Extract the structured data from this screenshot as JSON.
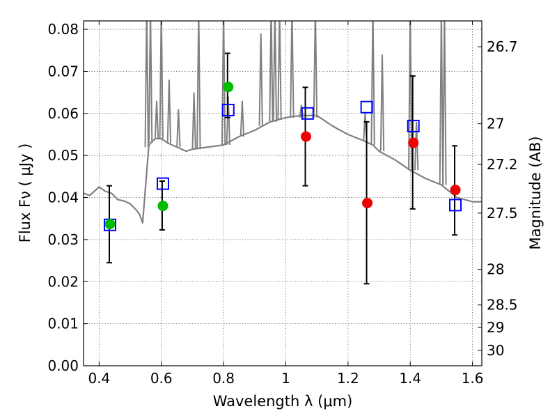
{
  "chart_data": {
    "type": "scatter",
    "title": "",
    "xlabel": "Wavelength  λ (μm)",
    "ylabel": "Flux  Fν  ( μJy )",
    "y2label": "Magnitude (AB)",
    "xlim": [
      0.35,
      1.63
    ],
    "ylim": [
      0.0,
      0.082
    ],
    "grid": true,
    "x_ticks": [
      0.4,
      0.6,
      0.8,
      1.0,
      1.2,
      1.4,
      1.6
    ],
    "x_tick_labels": [
      "0.4",
      "0.6",
      "0.8",
      "1",
      "1.2",
      "1.4",
      "1.6"
    ],
    "y_ticks": [
      0.0,
      0.01,
      0.02,
      0.03,
      0.04,
      0.05,
      0.06,
      0.07,
      0.08
    ],
    "y_tick_labels": [
      "0.00",
      "0.01",
      "0.02",
      "0.03",
      "0.04",
      "0.05",
      "0.06",
      "0.07",
      "0.08"
    ],
    "magnitude_ticks": [
      {
        "value": 26.7,
        "label": "26.7"
      },
      {
        "value": 27.0,
        "label": "27"
      },
      {
        "value": 27.2,
        "label": "27.2"
      },
      {
        "value": 27.5,
        "label": "27.5"
      },
      {
        "value": 28.0,
        "label": "28"
      },
      {
        "value": 28.5,
        "label": "28.5"
      },
      {
        "value": 29.0,
        "label": "29"
      },
      {
        "value": 30.0,
        "label": "30"
      }
    ],
    "colors": {
      "model_spectrum": "#808080",
      "model_photometry": "#0000ff",
      "observed_green": "#00bb00",
      "observed_red": "#ee0000",
      "error_bar": "#000000"
    },
    "series": [
      {
        "name": "model spectrum",
        "kind": "line",
        "x": [
          0.35,
          0.37,
          0.4,
          0.42,
          0.44,
          0.46,
          0.48,
          0.5,
          0.52,
          0.53,
          0.54,
          0.56,
          0.58,
          0.6,
          0.62,
          0.65,
          0.68,
          0.7,
          0.75,
          0.8,
          0.85,
          0.9,
          0.95,
          1.0,
          1.05,
          1.1,
          1.15,
          1.2,
          1.25,
          1.28,
          1.3,
          1.35,
          1.4,
          1.45,
          1.5,
          1.55,
          1.6,
          1.63
        ],
        "y": [
          0.041,
          0.0405,
          0.0425,
          0.0415,
          0.041,
          0.0395,
          0.0392,
          0.0385,
          0.037,
          0.036,
          0.034,
          0.0525,
          0.054,
          0.054,
          0.053,
          0.052,
          0.051,
          0.0515,
          0.052,
          0.0525,
          0.0545,
          0.056,
          0.058,
          0.059,
          0.0595,
          0.0595,
          0.057,
          0.055,
          0.0535,
          0.0525,
          0.051,
          0.049,
          0.0465,
          0.0445,
          0.043,
          0.04,
          0.039,
          0.039
        ]
      },
      {
        "name": "emission lines",
        "kind": "spikes",
        "x": [
          0.553,
          0.565,
          0.585,
          0.6,
          0.625,
          0.655,
          0.705,
          0.72,
          0.8,
          0.815,
          0.86,
          0.92,
          0.953,
          0.965,
          0.98,
          1.02,
          1.05,
          1.095,
          1.255,
          1.28,
          1.31,
          1.4,
          1.42,
          1.5,
          1.51
        ],
        "base": [
          0.052,
          0.053,
          0.054,
          0.054,
          0.053,
          0.052,
          0.0515,
          0.0515,
          0.0525,
          0.0525,
          0.0545,
          0.057,
          0.058,
          0.058,
          0.0585,
          0.059,
          0.059,
          0.059,
          0.0535,
          0.0525,
          0.051,
          0.0465,
          0.0465,
          0.043,
          0.043
        ],
        "peak": [
          0.085,
          0.085,
          0.063,
          0.085,
          0.068,
          0.061,
          0.065,
          0.085,
          0.085,
          0.064,
          0.063,
          0.079,
          0.085,
          0.085,
          0.085,
          0.085,
          0.062,
          0.085,
          0.06,
          0.085,
          0.074,
          0.085,
          0.058,
          0.085,
          0.085
        ]
      },
      {
        "name": "model photometry",
        "kind": "open-square",
        "x": [
          0.435,
          0.605,
          0.815,
          1.07,
          1.26,
          1.41,
          1.545
        ],
        "y": [
          0.0335,
          0.0433,
          0.0608,
          0.06,
          0.0615,
          0.057,
          0.0382
        ]
      },
      {
        "name": "observed photometry (green)",
        "kind": "filled-circle",
        "x": [
          0.435,
          0.605,
          0.815
        ],
        "y": [
          0.0337,
          0.038,
          0.0663
        ],
        "yerr_low": [
          0.0245,
          0.0323,
          0.059
        ],
        "yerr_high": [
          0.0428,
          0.0439,
          0.0743
        ]
      },
      {
        "name": "observed photometry (red)",
        "kind": "filled-circle",
        "x": [
          1.065,
          1.262,
          1.41,
          1.545
        ],
        "y": [
          0.0545,
          0.0387,
          0.053,
          0.0418
        ],
        "yerr_low": [
          0.0428,
          0.0195,
          0.0373,
          0.0311
        ],
        "yerr_high": [
          0.0662,
          0.058,
          0.0689,
          0.0523
        ]
      }
    ]
  }
}
